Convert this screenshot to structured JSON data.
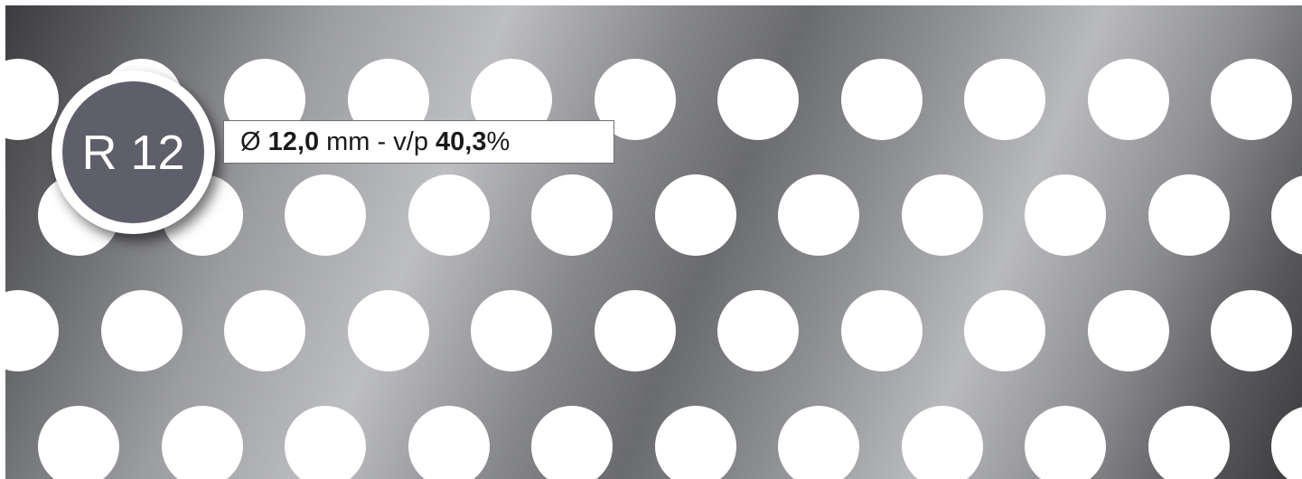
{
  "badge": {
    "label": "R 12"
  },
  "spec": {
    "diameter_symbol": "Ø",
    "diameter_value": "12,0",
    "diameter_unit": "mm",
    "separator": "-",
    "ratio_label": "v/p",
    "ratio_value": "40,3",
    "ratio_unit": "%"
  },
  "colors": {
    "badge_fill": "#5f5f6b",
    "badge_ring": "#ffffff",
    "hole": "#ffffff",
    "metal_dark": "#3a3a3c",
    "metal_light": "#bdbec2"
  }
}
